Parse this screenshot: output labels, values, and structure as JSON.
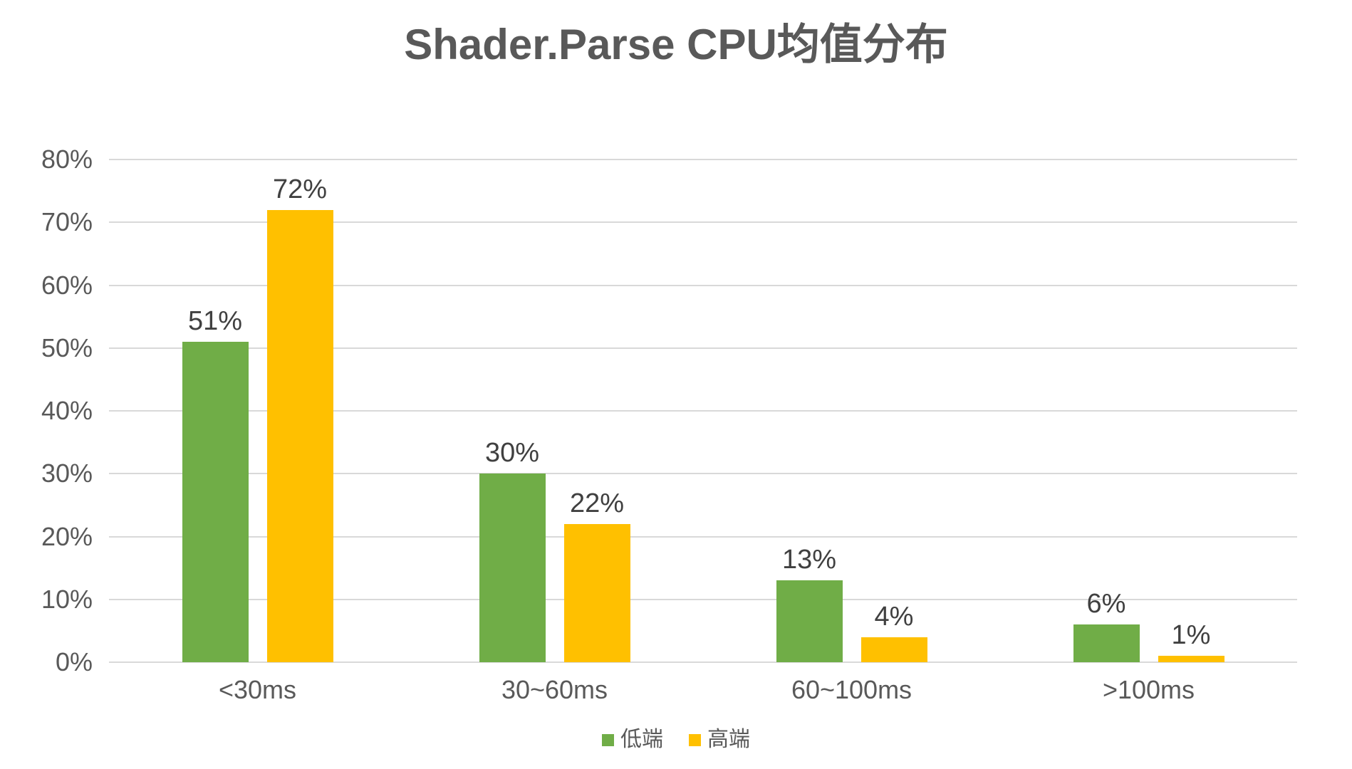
{
  "chart_data": {
    "type": "bar",
    "title": "Shader.Parse CPU均值分布",
    "categories": [
      "<30ms",
      "30~60ms",
      "60~100ms",
      ">100ms"
    ],
    "series": [
      {
        "key": "low-end",
        "name": "低端",
        "color": "#70AD47",
        "values": [
          51,
          30,
          13,
          6
        ],
        "labels": [
          "51%",
          "30%",
          "13%",
          "6%"
        ]
      },
      {
        "key": "high-end",
        "name": "高端",
        "color": "#FFC000",
        "values": [
          72,
          22,
          4,
          1
        ],
        "labels": [
          "72%",
          "22%",
          "4%",
          "1%"
        ]
      }
    ],
    "xlabel": "",
    "ylabel": "",
    "ylim": [
      0,
      80
    ],
    "yticks": [
      {
        "value": 0,
        "label": "0%"
      },
      {
        "value": 10,
        "label": "10%"
      },
      {
        "value": 20,
        "label": "20%"
      },
      {
        "value": 30,
        "label": "30%"
      },
      {
        "value": 40,
        "label": "40%"
      },
      {
        "value": 50,
        "label": "50%"
      },
      {
        "value": 60,
        "label": "60%"
      },
      {
        "value": 70,
        "label": "70%"
      },
      {
        "value": 80,
        "label": "80%"
      }
    ],
    "grid": "horizontal",
    "legend_position": "bottom"
  },
  "colors": {
    "background": "#FFFFFF",
    "gridline": "#D9D9D9",
    "axis_text": "#595959",
    "data_label_text": "#404040",
    "title_text": "#595959"
  }
}
